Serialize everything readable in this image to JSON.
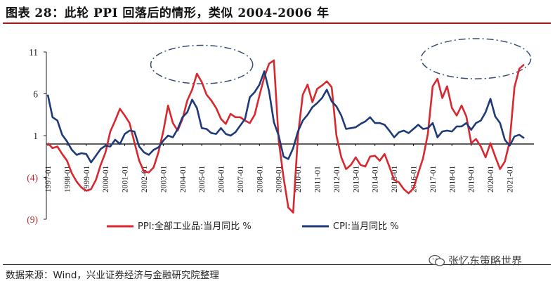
{
  "header": {
    "title": "图表 28：此轮 PPI 回落后的情形，类似 2004-2006 年"
  },
  "footer": {
    "source": "数据来源：Wind，兴业证券经济与金融研究院整理",
    "watermark": "张忆东策略世界"
  },
  "chart_data": {
    "type": "line",
    "title": "",
    "xlabel": "",
    "ylabel": "%",
    "ylim": [
      -9,
      11
    ],
    "yticks": [
      {
        "value": 11,
        "label": "11",
        "color": "#222222"
      },
      {
        "value": 6,
        "label": "6",
        "color": "#222222"
      },
      {
        "value": 1,
        "label": "1",
        "color": "#222222"
      },
      {
        "value": -4,
        "label": "(4)",
        "color": "#c0262d"
      },
      {
        "value": -9,
        "label": "(9)",
        "color": "#c0262d"
      }
    ],
    "x_start": 1997.0,
    "x_end": 2021.75,
    "xtick_labels": [
      "1997-01",
      "1998-01",
      "1999-01",
      "2000-01",
      "2001-01",
      "2002-01",
      "2003-01",
      "2004-01",
      "2005-01",
      "2006-01",
      "2007-01",
      "2008-01",
      "2009-01",
      "2010-01",
      "2011-01",
      "2012-01",
      "2013-01",
      "2014-01",
      "2015-01",
      "2016-01",
      "2017-01",
      "2018-01",
      "2019-01",
      "2020-01",
      "2021-01"
    ],
    "series": [
      {
        "name": "PPI:全部工业品:当月同比 %",
        "color": "#d7282f",
        "points": [
          [
            1997.0,
            0.1
          ],
          [
            1997.25,
            -0.5
          ],
          [
            1997.5,
            -0.3
          ],
          [
            1997.75,
            -1.2
          ],
          [
            1998.0,
            -2.0
          ],
          [
            1998.25,
            -3.5
          ],
          [
            1998.5,
            -4.5
          ],
          [
            1998.75,
            -5.2
          ],
          [
            1999.0,
            -5.6
          ],
          [
            1999.25,
            -5.4
          ],
          [
            1999.5,
            -4.3
          ],
          [
            1999.75,
            -2.5
          ],
          [
            2000.0,
            -1.0
          ],
          [
            2000.25,
            1.5
          ],
          [
            2000.5,
            2.8
          ],
          [
            2000.75,
            4.2
          ],
          [
            2001.0,
            3.4
          ],
          [
            2001.25,
            2.5
          ],
          [
            2001.5,
            0.2
          ],
          [
            2001.75,
            -2.0
          ],
          [
            2002.0,
            -3.3
          ],
          [
            2002.25,
            -3.4
          ],
          [
            2002.5,
            -2.8
          ],
          [
            2002.75,
            -1.0
          ],
          [
            2003.0,
            1.5
          ],
          [
            2003.25,
            4.6
          ],
          [
            2003.5,
            2.5
          ],
          [
            2003.75,
            1.6
          ],
          [
            2004.0,
            3.0
          ],
          [
            2004.25,
            5.2
          ],
          [
            2004.5,
            6.5
          ],
          [
            2004.75,
            8.4
          ],
          [
            2005.0,
            7.4
          ],
          [
            2005.25,
            5.9
          ],
          [
            2005.5,
            5.2
          ],
          [
            2005.75,
            4.3
          ],
          [
            2006.0,
            3.0
          ],
          [
            2006.25,
            2.4
          ],
          [
            2006.5,
            3.6
          ],
          [
            2006.75,
            3.2
          ],
          [
            2007.0,
            3.2
          ],
          [
            2007.25,
            2.8
          ],
          [
            2007.5,
            2.5
          ],
          [
            2007.75,
            3.5
          ],
          [
            2008.0,
            5.8
          ],
          [
            2008.25,
            8.0
          ],
          [
            2008.5,
            9.6
          ],
          [
            2008.75,
            10.0
          ],
          [
            2009.0,
            0.4
          ],
          [
            2009.25,
            -4.0
          ],
          [
            2009.5,
            -7.6
          ],
          [
            2009.75,
            -8.2
          ],
          [
            2010.0,
            1.0
          ],
          [
            2010.25,
            5.9
          ],
          [
            2010.5,
            7.1
          ],
          [
            2010.75,
            5.0
          ],
          [
            2011.0,
            6.6
          ],
          [
            2011.25,
            7.0
          ],
          [
            2011.5,
            7.5
          ],
          [
            2011.75,
            6.8
          ],
          [
            2012.0,
            1.0
          ],
          [
            2012.25,
            -1.6
          ],
          [
            2012.5,
            -3.0
          ],
          [
            2012.75,
            -2.5
          ],
          [
            2013.0,
            -1.6
          ],
          [
            2013.25,
            -2.5
          ],
          [
            2013.5,
            -2.7
          ],
          [
            2013.75,
            -1.5
          ],
          [
            2014.0,
            -1.4
          ],
          [
            2014.25,
            -2.0
          ],
          [
            2014.5,
            -1.2
          ],
          [
            2014.75,
            -2.7
          ],
          [
            2015.0,
            -4.3
          ],
          [
            2015.25,
            -4.6
          ],
          [
            2015.5,
            -5.4
          ],
          [
            2015.75,
            -5.9
          ],
          [
            2016.0,
            -5.3
          ],
          [
            2016.25,
            -3.5
          ],
          [
            2016.5,
            -1.7
          ],
          [
            2016.75,
            1.2
          ],
          [
            2017.0,
            6.9
          ],
          [
            2017.25,
            7.8
          ],
          [
            2017.5,
            5.5
          ],
          [
            2017.75,
            6.9
          ],
          [
            2018.0,
            4.3
          ],
          [
            2018.25,
            3.4
          ],
          [
            2018.5,
            4.6
          ],
          [
            2018.75,
            3.3
          ],
          [
            2019.0,
            0.1
          ],
          [
            2019.25,
            0.6
          ],
          [
            2019.5,
            -0.3
          ],
          [
            2019.75,
            -1.6
          ],
          [
            2020.0,
            0.1
          ],
          [
            2020.25,
            -1.5
          ],
          [
            2020.5,
            -3.0
          ],
          [
            2020.75,
            -2.1
          ],
          [
            2021.0,
            0.3
          ],
          [
            2021.25,
            6.8
          ],
          [
            2021.5,
            9.0
          ],
          [
            2021.75,
            9.5
          ]
        ]
      },
      {
        "name": "CPI:当月同比 %",
        "color": "#1f3a78",
        "points": [
          [
            1997.0,
            5.9
          ],
          [
            1997.25,
            3.2
          ],
          [
            1997.5,
            2.8
          ],
          [
            1997.75,
            1.1
          ],
          [
            1998.0,
            0.3
          ],
          [
            1998.25,
            -0.7
          ],
          [
            1998.5,
            -1.3
          ],
          [
            1998.75,
            -1.1
          ],
          [
            1999.0,
            -1.2
          ],
          [
            1999.25,
            -2.2
          ],
          [
            1999.5,
            -1.4
          ],
          [
            1999.75,
            -0.6
          ],
          [
            2000.0,
            -0.2
          ],
          [
            2000.25,
            -0.3
          ],
          [
            2000.5,
            0.5
          ],
          [
            2000.75,
            0.0
          ],
          [
            2001.0,
            1.2
          ],
          [
            2001.25,
            1.6
          ],
          [
            2001.5,
            1.5
          ],
          [
            2001.75,
            -0.3
          ],
          [
            2002.0,
            -1.0
          ],
          [
            2002.25,
            -1.3
          ],
          [
            2002.5,
            -0.7
          ],
          [
            2002.75,
            -0.4
          ],
          [
            2003.0,
            0.4
          ],
          [
            2003.25,
            1.0
          ],
          [
            2003.5,
            0.8
          ],
          [
            2003.75,
            1.8
          ],
          [
            2004.0,
            3.2
          ],
          [
            2004.25,
            3.8
          ],
          [
            2004.5,
            5.3
          ],
          [
            2004.75,
            4.3
          ],
          [
            2005.0,
            1.9
          ],
          [
            2005.25,
            1.8
          ],
          [
            2005.5,
            1.3
          ],
          [
            2005.75,
            1.2
          ],
          [
            2006.0,
            1.9
          ],
          [
            2006.25,
            1.2
          ],
          [
            2006.5,
            1.0
          ],
          [
            2006.75,
            1.4
          ],
          [
            2007.0,
            2.2
          ],
          [
            2007.25,
            3.0
          ],
          [
            2007.5,
            5.6
          ],
          [
            2007.75,
            6.2
          ],
          [
            2008.0,
            7.1
          ],
          [
            2008.25,
            8.7
          ],
          [
            2008.5,
            6.3
          ],
          [
            2008.75,
            2.6
          ],
          [
            2009.0,
            1.0
          ],
          [
            2009.25,
            -1.5
          ],
          [
            2009.5,
            -1.8
          ],
          [
            2009.75,
            -0.5
          ],
          [
            2010.0,
            1.5
          ],
          [
            2010.25,
            2.8
          ],
          [
            2010.5,
            3.5
          ],
          [
            2010.75,
            4.4
          ],
          [
            2011.0,
            4.9
          ],
          [
            2011.25,
            5.5
          ],
          [
            2011.5,
            6.5
          ],
          [
            2011.75,
            5.1
          ],
          [
            2012.0,
            4.5
          ],
          [
            2012.25,
            3.4
          ],
          [
            2012.5,
            1.8
          ],
          [
            2012.75,
            1.9
          ],
          [
            2013.0,
            2.0
          ],
          [
            2013.25,
            2.4
          ],
          [
            2013.5,
            2.7
          ],
          [
            2013.75,
            3.2
          ],
          [
            2014.0,
            2.5
          ],
          [
            2014.25,
            2.5
          ],
          [
            2014.5,
            2.3
          ],
          [
            2014.75,
            1.6
          ],
          [
            2015.0,
            0.8
          ],
          [
            2015.25,
            1.4
          ],
          [
            2015.5,
            1.6
          ],
          [
            2015.75,
            1.3
          ],
          [
            2016.0,
            1.8
          ],
          [
            2016.25,
            2.3
          ],
          [
            2016.5,
            1.8
          ],
          [
            2016.75,
            1.9
          ],
          [
            2017.0,
            2.5
          ],
          [
            2017.25,
            0.8
          ],
          [
            2017.5,
            1.5
          ],
          [
            2017.75,
            1.6
          ],
          [
            2018.0,
            1.5
          ],
          [
            2018.25,
            2.1
          ],
          [
            2018.5,
            2.1
          ],
          [
            2018.75,
            2.5
          ],
          [
            2019.0,
            1.7
          ],
          [
            2019.25,
            2.5
          ],
          [
            2019.5,
            2.8
          ],
          [
            2019.75,
            3.8
          ],
          [
            2020.0,
            5.4
          ],
          [
            2020.25,
            3.3
          ],
          [
            2020.5,
            2.5
          ],
          [
            2020.75,
            0.5
          ],
          [
            2021.0,
            -0.2
          ],
          [
            2021.25,
            0.9
          ],
          [
            2021.5,
            1.1
          ],
          [
            2021.75,
            0.7
          ]
        ]
      }
    ],
    "annotations": [
      {
        "type": "dash-dot-ellipse",
        "center_x": 2005.0,
        "center_y": 9.5,
        "radius_x": 2.65,
        "radius_y": 2.3
      },
      {
        "type": "dash-dot-ellipse",
        "center_x": 2019.25,
        "center_y": 10.2,
        "radius_x": 2.85,
        "radius_y": 2.4
      }
    ]
  }
}
